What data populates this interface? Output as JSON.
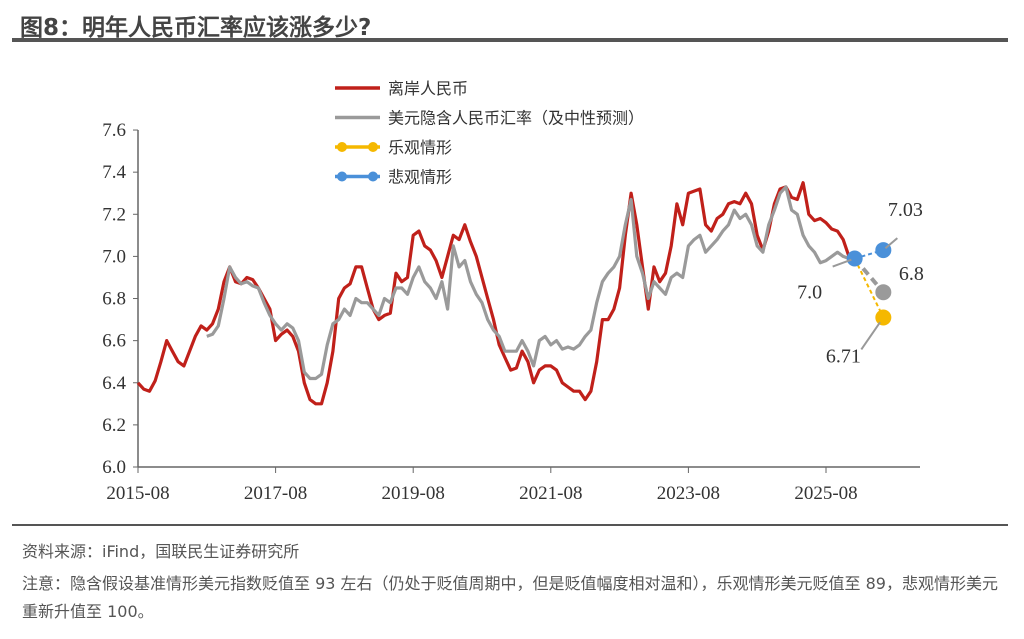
{
  "title": "图8：明年人民币汇率应该涨多少?",
  "source": "资料来源：iFind，国联民生证券研究所",
  "note": "注意：隐含假设基准情形美元指数贬值至 93 左右（仍处于贬值周期中，但是贬值幅度相对温和），乐观情形美元贬值至 89，悲观情形美元重新升值至 100。",
  "chart_data": {
    "type": "line",
    "title": "",
    "xlabel": "",
    "ylabel": "",
    "ylim": [
      6.0,
      7.6
    ],
    "y_ticks": [
      "6.0",
      "6.2",
      "6.4",
      "6.6",
      "6.8",
      "7.0",
      "7.2",
      "7.4",
      "7.6"
    ],
    "x_ticks": [
      "2015-08",
      "2017-08",
      "2019-08",
      "2021-08",
      "2023-08",
      "2025-08"
    ],
    "grid": false,
    "legend_position": "top-left",
    "series": [
      {
        "name": "离岸人民币",
        "color": "#C0201A",
        "start": "2015-08",
        "values": [
          6.4,
          6.37,
          6.36,
          6.41,
          6.5,
          6.6,
          6.55,
          6.5,
          6.48,
          6.55,
          6.62,
          6.67,
          6.65,
          6.68,
          6.75,
          6.88,
          6.95,
          6.88,
          6.87,
          6.9,
          6.89,
          6.85,
          6.8,
          6.75,
          6.6,
          6.63,
          6.65,
          6.62,
          6.55,
          6.4,
          6.32,
          6.3,
          6.3,
          6.4,
          6.55,
          6.8,
          6.85,
          6.87,
          6.95,
          6.95,
          6.85,
          6.75,
          6.7,
          6.72,
          6.73,
          6.92,
          6.88,
          6.9,
          7.1,
          7.12,
          7.05,
          7.03,
          6.98,
          6.9,
          7.0,
          7.1,
          7.08,
          7.15,
          7.07,
          7.0,
          6.9,
          6.8,
          6.7,
          6.58,
          6.52,
          6.46,
          6.47,
          6.55,
          6.5,
          6.4,
          6.46,
          6.48,
          6.48,
          6.46,
          6.4,
          6.38,
          6.36,
          6.36,
          6.32,
          6.36,
          6.5,
          6.7,
          6.7,
          6.75,
          6.85,
          7.1,
          7.3,
          7.15,
          6.95,
          6.75,
          6.95,
          6.88,
          6.92,
          7.05,
          7.25,
          7.15,
          7.3,
          7.31,
          7.32,
          7.15,
          7.12,
          7.18,
          7.2,
          7.25,
          7.26,
          7.25,
          7.3,
          7.25,
          7.1,
          7.03,
          7.12,
          7.25,
          7.32,
          7.33,
          7.28,
          7.27,
          7.35,
          7.2,
          7.17,
          7.18,
          7.16,
          7.13,
          7.12,
          7.08,
          7.0
        ]
      },
      {
        "name": "美元隐含人民币汇率（及中性预测）",
        "color": "#9A9A9A",
        "start": "2016-08",
        "values": [
          6.62,
          6.63,
          6.67,
          6.8,
          6.95,
          6.9,
          6.87,
          6.88,
          6.86,
          6.85,
          6.78,
          6.72,
          6.68,
          6.65,
          6.68,
          6.66,
          6.6,
          6.45,
          6.42,
          6.42,
          6.44,
          6.58,
          6.68,
          6.7,
          6.75,
          6.72,
          6.8,
          6.78,
          6.78,
          6.75,
          6.72,
          6.8,
          6.78,
          6.85,
          6.85,
          6.82,
          6.9,
          6.95,
          6.88,
          6.85,
          6.8,
          6.88,
          6.75,
          7.05,
          6.95,
          6.98,
          6.88,
          6.82,
          6.78,
          6.7,
          6.65,
          6.62,
          6.55,
          6.55,
          6.55,
          6.6,
          6.55,
          6.48,
          6.6,
          6.62,
          6.58,
          6.6,
          6.56,
          6.57,
          6.56,
          6.58,
          6.62,
          6.65,
          6.78,
          6.88,
          6.92,
          6.95,
          7.0,
          7.15,
          7.27,
          7.0,
          6.92,
          6.8,
          6.88,
          6.85,
          6.82,
          6.9,
          6.92,
          6.9,
          7.05,
          7.08,
          7.1,
          7.02,
          7.05,
          7.08,
          7.12,
          7.15,
          7.22,
          7.18,
          7.2,
          7.15,
          7.05,
          7.02,
          7.15,
          7.22,
          7.3,
          7.33,
          7.22,
          7.2,
          7.1,
          7.05,
          7.02,
          6.97,
          6.98,
          7.0,
          7.02,
          7.0,
          6.99
        ]
      },
      {
        "name": "乐观情形",
        "color": "#F5B800",
        "x": [
          "2026-01",
          "2026-06"
        ],
        "values": [
          6.99,
          6.71
        ],
        "labels": [
          "",
          "6.71"
        ]
      },
      {
        "name": "悲观情形",
        "color": "#4A90D9",
        "x": [
          "2026-01",
          "2026-06"
        ],
        "values": [
          6.99,
          7.03
        ],
        "labels": [
          "7.0",
          "7.03"
        ]
      },
      {
        "name": "中性预测",
        "color": "#9A9A9A",
        "x": [
          "2026-01",
          "2026-06"
        ],
        "values": [
          6.99,
          6.83
        ],
        "labels": [
          "",
          "6.8"
        ]
      }
    ]
  }
}
